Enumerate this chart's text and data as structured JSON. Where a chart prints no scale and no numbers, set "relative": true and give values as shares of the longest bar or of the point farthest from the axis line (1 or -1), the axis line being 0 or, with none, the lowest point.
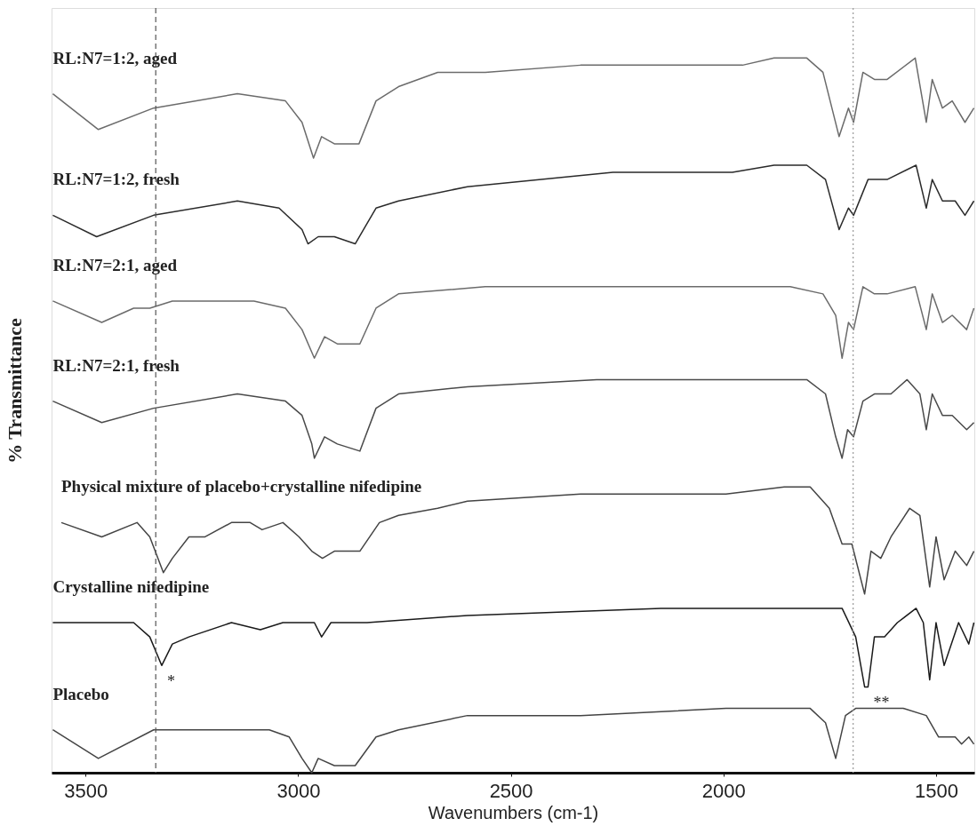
{
  "chart_data": {
    "type": "line",
    "relative": true,
    "xlabel": "Wavenumbers (cm-1)",
    "ylabel": "% Transmittance",
    "xlim": [
      3580,
      1410
    ],
    "xticks": [
      3500,
      3000,
      2500,
      2000,
      1500
    ],
    "grid": false,
    "legend": false,
    "series": [
      {
        "name": "RL:N7=1:2, aged",
        "color": "#6b6b6b",
        "x": [
          3577,
          3470,
          3340,
          3143,
          3030,
          2991,
          2964,
          2945,
          2915,
          2857,
          2817,
          2764,
          2672,
          2560,
          2336,
          1955,
          1881,
          1804,
          1766,
          1728,
          1706,
          1694,
          1672,
          1645,
          1615,
          1549,
          1523,
          1509,
          1485,
          1462,
          1432,
          1411
        ],
        "values": [
          0.95,
          0.9,
          0.93,
          0.95,
          0.94,
          0.91,
          0.86,
          0.89,
          0.88,
          0.88,
          0.94,
          0.96,
          0.98,
          0.98,
          0.99,
          0.99,
          1.0,
          1.0,
          0.98,
          0.89,
          0.93,
          0.91,
          0.98,
          0.97,
          0.97,
          1.0,
          0.91,
          0.97,
          0.93,
          0.94,
          0.91,
          0.93
        ]
      },
      {
        "name": "RL:N7=1:2, fresh",
        "color": "#2a2a2a",
        "x": [
          3577,
          3474,
          3340,
          3143,
          3045,
          2991,
          2977,
          2953,
          2915,
          2866,
          2817,
          2764,
          2602,
          2260,
          1979,
          1881,
          1804,
          1760,
          1728,
          1706,
          1694,
          1660,
          1615,
          1547,
          1523,
          1509,
          1485,
          1455,
          1432,
          1411
        ],
        "values": [
          0.78,
          0.75,
          0.78,
          0.8,
          0.79,
          0.76,
          0.74,
          0.75,
          0.75,
          0.74,
          0.79,
          0.8,
          0.82,
          0.84,
          0.84,
          0.85,
          0.85,
          0.83,
          0.76,
          0.79,
          0.78,
          0.83,
          0.83,
          0.85,
          0.79,
          0.83,
          0.8,
          0.8,
          0.78,
          0.8
        ]
      },
      {
        "name": "RL:N7=2:1, aged",
        "color": "#6b6b6b",
        "x": [
          3577,
          3462,
          3387,
          3349,
          3296,
          3104,
          3030,
          2991,
          2962,
          2938,
          2908,
          2855,
          2817,
          2764,
          2560,
          2451,
          2221,
          1843,
          1766,
          1736,
          1721,
          1706,
          1694,
          1672,
          1645,
          1615,
          1549,
          1523,
          1509,
          1485,
          1462,
          1428,
          1411
        ],
        "values": [
          0.66,
          0.63,
          0.65,
          0.65,
          0.66,
          0.66,
          0.65,
          0.62,
          0.58,
          0.61,
          0.6,
          0.6,
          0.65,
          0.67,
          0.68,
          0.68,
          0.68,
          0.68,
          0.67,
          0.64,
          0.58,
          0.63,
          0.62,
          0.68,
          0.67,
          0.67,
          0.68,
          0.62,
          0.67,
          0.63,
          0.64,
          0.62,
          0.65
        ]
      },
      {
        "name": "RL:N7=2:1, fresh",
        "color": "#4a4a4a",
        "x": [
          3577,
          3462,
          3340,
          3143,
          3030,
          2991,
          2968,
          2962,
          2938,
          2908,
          2855,
          2817,
          2764,
          2602,
          2298,
          1881,
          1804,
          1760,
          1736,
          1721,
          1708,
          1694,
          1672,
          1645,
          1606,
          1568,
          1538,
          1523,
          1509,
          1485,
          1462,
          1428,
          1411
        ],
        "values": [
          0.52,
          0.49,
          0.51,
          0.53,
          0.52,
          0.5,
          0.46,
          0.44,
          0.47,
          0.46,
          0.45,
          0.51,
          0.53,
          0.54,
          0.55,
          0.55,
          0.55,
          0.53,
          0.47,
          0.44,
          0.48,
          0.47,
          0.52,
          0.53,
          0.53,
          0.55,
          0.53,
          0.48,
          0.53,
          0.5,
          0.5,
          0.48,
          0.49
        ]
      },
      {
        "name": "Physical mixture of placebo+crystalline nifedipine",
        "color": "#444444",
        "x": [
          3557,
          3462,
          3379,
          3349,
          3317,
          3296,
          3257,
          3219,
          3157,
          3113,
          3085,
          3036,
          2998,
          2968,
          2943,
          2915,
          2855,
          2809,
          2764,
          2672,
          2602,
          2336,
          1994,
          1857,
          1796,
          1751,
          1721,
          1698,
          1668,
          1653,
          1630,
          1606,
          1562,
          1538,
          1515,
          1500,
          1481,
          1455,
          1428,
          1411
        ],
        "values": [
          0.35,
          0.33,
          0.35,
          0.33,
          0.28,
          0.3,
          0.33,
          0.33,
          0.35,
          0.35,
          0.34,
          0.35,
          0.33,
          0.31,
          0.3,
          0.31,
          0.31,
          0.35,
          0.36,
          0.37,
          0.38,
          0.39,
          0.39,
          0.4,
          0.4,
          0.37,
          0.32,
          0.32,
          0.25,
          0.31,
          0.3,
          0.33,
          0.37,
          0.36,
          0.26,
          0.33,
          0.27,
          0.31,
          0.29,
          0.31
        ]
      },
      {
        "name": "Crystalline nifedipine",
        "color": "#1a1a1a",
        "x": [
          3577,
          3387,
          3349,
          3321,
          3296,
          3257,
          3157,
          3089,
          3036,
          2991,
          2962,
          2945,
          2923,
          2838,
          2602,
          2147,
          1843,
          1721,
          1689,
          1668,
          1660,
          1645,
          1621,
          1591,
          1547,
          1530,
          1515,
          1500,
          1481,
          1447,
          1423,
          1411
        ],
        "values": [
          0.21,
          0.21,
          0.19,
          0.15,
          0.18,
          0.19,
          0.21,
          0.2,
          0.21,
          0.21,
          0.21,
          0.19,
          0.21,
          0.21,
          0.22,
          0.23,
          0.23,
          0.23,
          0.19,
          0.12,
          0.12,
          0.19,
          0.19,
          0.21,
          0.23,
          0.21,
          0.13,
          0.21,
          0.15,
          0.21,
          0.18,
          0.21
        ]
      },
      {
        "name": "Placebo",
        "color": "#444444",
        "x": [
          3577,
          3470,
          3340,
          3257,
          3068,
          3021,
          2991,
          2968,
          2953,
          2915,
          2866,
          2817,
          2764,
          2602,
          2374,
          2360,
          2336,
          1994,
          1919,
          1796,
          1760,
          1736,
          1713,
          1689,
          1577,
          1523,
          1494,
          1455,
          1440,
          1423,
          1411
        ],
        "values": [
          0.06,
          0.02,
          0.06,
          0.06,
          0.06,
          0.05,
          0.02,
          0.0,
          0.02,
          0.01,
          0.01,
          0.05,
          0.06,
          0.08,
          0.08,
          0.08,
          0.08,
          0.09,
          0.09,
          0.09,
          0.07,
          0.02,
          0.08,
          0.09,
          0.09,
          0.08,
          0.05,
          0.05,
          0.04,
          0.05,
          0.04
        ]
      }
    ],
    "ref_lines": [
      {
        "axis": "x",
        "value": 3335,
        "color": "#555555",
        "line_style": "dashed"
      },
      {
        "axis": "x",
        "value": 1695,
        "color": "#999999",
        "line_style": "dotted"
      }
    ],
    "annotations": [
      {
        "text": "*",
        "x": 3321,
        "y": 0.15
      },
      {
        "text": "**",
        "x": 1660,
        "y": 0.12
      }
    ]
  }
}
